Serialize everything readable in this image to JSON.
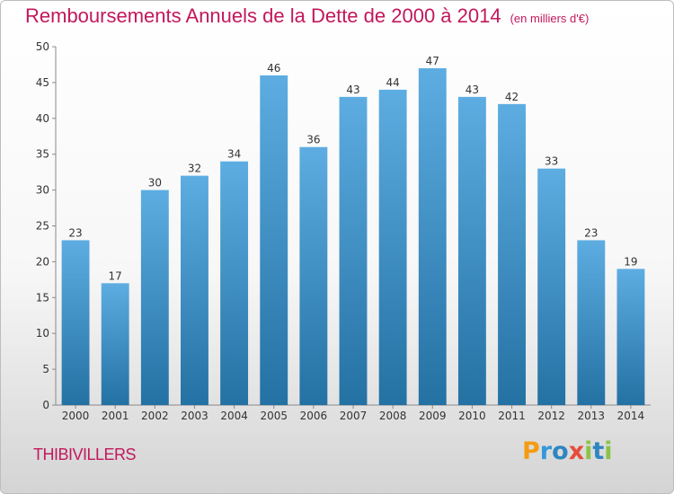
{
  "title": "Remboursements Annuels de la Dette de 2000 à 2014",
  "unit": "(en milliers d'€)",
  "commune": "THIBIVILLERS",
  "logo": {
    "letters": [
      "P",
      "r",
      "o",
      "x",
      "i",
      "t",
      "i"
    ],
    "colors": [
      "#f39c12",
      "#3498db",
      "#2e86c1",
      "#e74c3c",
      "#8bc34a",
      "#2e86c1",
      "#8bc34a"
    ]
  },
  "colors": {
    "bar_light": "#5dade2",
    "bar_dark": "#2471a3",
    "title": "#c2185b"
  },
  "chart_data": {
    "type": "bar",
    "title": "Remboursements Annuels de la Dette de 2000 à 2014",
    "categories": [
      "2000",
      "2001",
      "2002",
      "2003",
      "2004",
      "2005",
      "2006",
      "2007",
      "2008",
      "2009",
      "2010",
      "2011",
      "2012",
      "2013",
      "2014"
    ],
    "values": [
      23,
      17,
      30,
      32,
      34,
      46,
      36,
      43,
      44,
      47,
      43,
      42,
      33,
      23,
      19
    ],
    "ylim": [
      0,
      50
    ],
    "yticks": [
      0,
      5,
      10,
      15,
      20,
      25,
      30,
      35,
      40,
      45,
      50
    ],
    "grid": false,
    "xlabel": "",
    "ylabel": ""
  }
}
